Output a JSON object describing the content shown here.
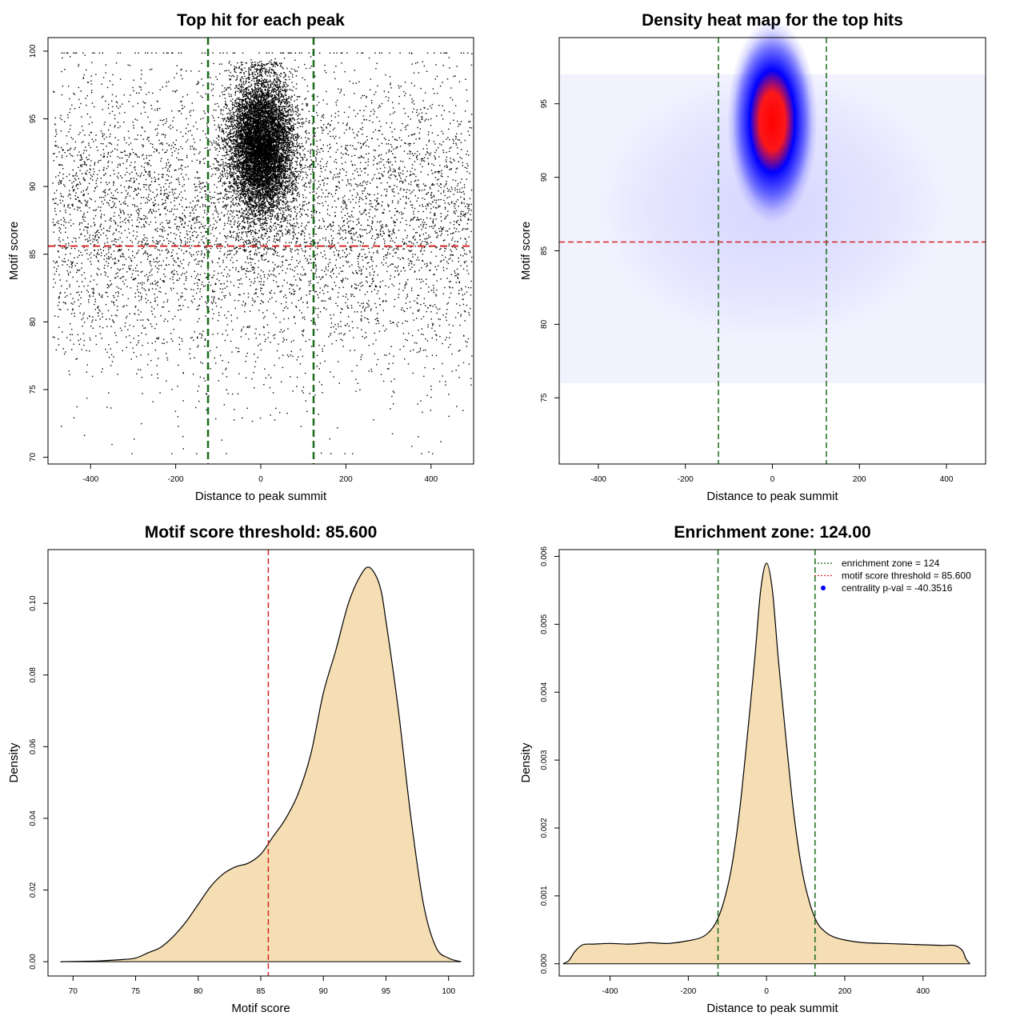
{
  "colors": {
    "threshold_line": "#d62728",
    "zone_line": "#1a6b1a",
    "density_fill": "#f5deb3",
    "heat_low": "#ffffff",
    "heat_mid": "#0000ff",
    "heat_high": "#ff0000",
    "centrality_point": "#0000ff"
  },
  "chart_data": [
    {
      "id": "scatter",
      "type": "scatter",
      "title": "Top hit for each peak",
      "xlabel": "Distance to peak summit",
      "ylabel": "Motif score",
      "xlim": [
        -500,
        500
      ],
      "ylim": [
        69.5,
        101
      ],
      "xticks": [
        -400,
        -200,
        0,
        200,
        400
      ],
      "yticks": [
        70,
        75,
        80,
        85,
        90,
        95,
        100
      ],
      "grid": false,
      "vlines": [
        -124,
        124
      ],
      "hline": 85.6,
      "point_distribution": {
        "n_background": 6000,
        "background_x_range": [
          -490,
          495
        ],
        "background_y_mean": 87.5,
        "background_y_sd": 5.5,
        "n_central": 9000,
        "central_x_mean": 0,
        "central_x_sd": 38,
        "central_y_mean": 93.0,
        "central_y_sd": 2.6
      }
    },
    {
      "id": "heatmap",
      "type": "heatmap",
      "title": "Density heat map for the top hits",
      "xlabel": "Distance to peak summit",
      "ylabel": "Motif score",
      "xlim": [
        -490,
        490
      ],
      "ylim": [
        70.5,
        99.5
      ],
      "xticks": [
        -400,
        -200,
        0,
        200,
        400
      ],
      "yticks": [
        75,
        80,
        85,
        90,
        95
      ],
      "grid": false,
      "vlines": [
        -124,
        124
      ],
      "hline": 85.6,
      "peak_center": {
        "x": 0,
        "y": 93.8
      },
      "peak_spread": {
        "x": 45,
        "y": 3.3
      }
    },
    {
      "id": "score_density",
      "type": "area",
      "title": "Motif score threshold: 85.600",
      "xlabel": "Motif score",
      "ylabel": "Density",
      "xlim": [
        68,
        102
      ],
      "ylim": [
        -0.004,
        0.115
      ],
      "xticks": [
        70,
        75,
        80,
        85,
        90,
        95,
        100
      ],
      "yticks": [
        0.0,
        0.02,
        0.04,
        0.06,
        0.08,
        0.1
      ],
      "ytick_labels": [
        "0.00",
        "0.02",
        "0.04",
        "0.06",
        "0.08",
        "0.10"
      ],
      "grid": false,
      "vline": 85.6,
      "x": [
        69,
        72,
        74,
        75,
        76,
        77,
        78,
        79,
        80,
        81,
        82,
        83,
        84,
        85,
        86,
        87,
        88,
        89,
        90,
        91,
        92,
        93,
        93.7,
        94.5,
        95,
        96,
        97,
        98,
        99,
        100,
        101
      ],
      "y": [
        0.0,
        0.0002,
        0.0006,
        0.001,
        0.0025,
        0.004,
        0.007,
        0.011,
        0.016,
        0.021,
        0.0245,
        0.0265,
        0.0275,
        0.03,
        0.035,
        0.04,
        0.047,
        0.058,
        0.075,
        0.087,
        0.1,
        0.108,
        0.11,
        0.105,
        0.095,
        0.07,
        0.04,
        0.016,
        0.004,
        0.001,
        0.0
      ]
    },
    {
      "id": "distance_density",
      "type": "area",
      "title": "Enrichment zone: 124.00",
      "xlabel": "Distance to peak summit",
      "ylabel": "Density",
      "xlim": [
        -530,
        560
      ],
      "ylim": [
        -0.00018,
        0.0061
      ],
      "xticks": [
        -400,
        -200,
        0,
        200,
        400
      ],
      "yticks": [
        0.0,
        0.001,
        0.002,
        0.003,
        0.004,
        0.005,
        0.006
      ],
      "ytick_labels": [
        "0.000",
        "0.001",
        "0.002",
        "0.003",
        "0.004",
        "0.005",
        "0.006"
      ],
      "grid": false,
      "vlines": [
        -124,
        124
      ],
      "x": [
        -520,
        -505,
        -490,
        -470,
        -440,
        -400,
        -350,
        -300,
        -250,
        -200,
        -170,
        -150,
        -130,
        -110,
        -90,
        -70,
        -50,
        -30,
        -15,
        0,
        15,
        30,
        50,
        70,
        90,
        110,
        130,
        150,
        170,
        200,
        250,
        300,
        350,
        400,
        450,
        480,
        500,
        510,
        520
      ],
      "y": [
        0.0,
        5e-05,
        0.00018,
        0.00028,
        0.00029,
        0.0003,
        0.00029,
        0.00031,
        0.0003,
        0.00034,
        0.00038,
        0.00045,
        0.0006,
        0.0009,
        0.0014,
        0.0022,
        0.0033,
        0.0045,
        0.0055,
        0.0059,
        0.0055,
        0.0045,
        0.0033,
        0.0022,
        0.0014,
        0.0009,
        0.0006,
        0.00047,
        0.0004,
        0.00035,
        0.00031,
        0.0003,
        0.00029,
        0.00028,
        0.00027,
        0.00027,
        0.0002,
        7e-05,
        0.0
      ],
      "legend": {
        "position": "top-right",
        "entries": [
          {
            "label": "enrichment zone = 124",
            "style": "dotted-line",
            "color": "#1a6b1a"
          },
          {
            "label": "motif score threshold = 85.600",
            "style": "dotted-line",
            "color": "#d62728"
          },
          {
            "label": "centrality p-val = -40.3516",
            "style": "point",
            "color": "#0000ff"
          }
        ]
      }
    }
  ]
}
